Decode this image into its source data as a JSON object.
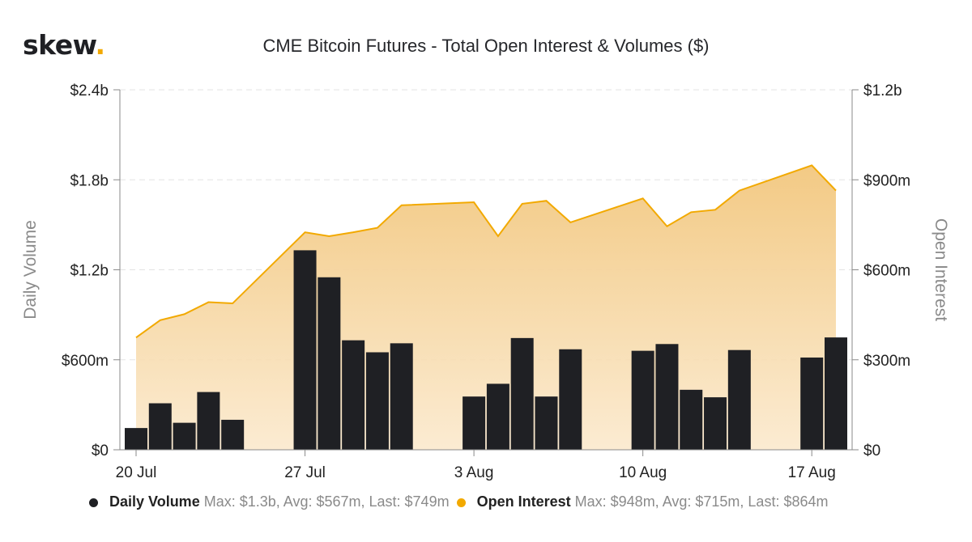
{
  "brand": {
    "name": "skew",
    "dot": "."
  },
  "chart_data": {
    "type": "bar+area",
    "title": "CME Bitcoin Futures - Total Open Interest & Volumes ($)",
    "x_ticks": [
      "20 Jul",
      "27 Jul",
      "3 Aug",
      "10 Aug",
      "17 Aug"
    ],
    "x": [
      "2020-07-20",
      "2020-07-21",
      "2020-07-22",
      "2020-07-23",
      "2020-07-24",
      "2020-07-27",
      "2020-07-28",
      "2020-07-29",
      "2020-07-30",
      "2020-07-31",
      "2020-08-03",
      "2020-08-04",
      "2020-08-05",
      "2020-08-06",
      "2020-08-07",
      "2020-08-10",
      "2020-08-11",
      "2020-08-12",
      "2020-08-13",
      "2020-08-14",
      "2020-08-17",
      "2020-08-18"
    ],
    "left_axis": {
      "label": "Daily Volume",
      "range": [
        0,
        2400000000
      ],
      "ticks": [
        "$0",
        "$600m",
        "$1.2b",
        "$1.8b",
        "$2.4b"
      ]
    },
    "right_axis": {
      "label": "Open Interest",
      "range": [
        0,
        1200000000
      ],
      "ticks": [
        "$0",
        "$300m",
        "$600m",
        "$900m",
        "$1.2b"
      ]
    },
    "grid": true,
    "series": [
      {
        "name": "Daily Volume",
        "kind": "bar",
        "axis": "left",
        "color": "#1f2024",
        "values": [
          145000000,
          310000000,
          180000000,
          385000000,
          200000000,
          1330000000,
          1150000000,
          730000000,
          650000000,
          710000000,
          355000000,
          440000000,
          745000000,
          355000000,
          670000000,
          660000000,
          705000000,
          400000000,
          350000000,
          665000000,
          615000000,
          749000000
        ],
        "stats": "Max: $1.3b, Avg: $567m, Last: $749m"
      },
      {
        "name": "Open Interest",
        "kind": "area",
        "axis": "right",
        "color": "#f2a900",
        "values": [
          374000000,
          432000000,
          452000000,
          492000000,
          488000000,
          725000000,
          712000000,
          725000000,
          740000000,
          815000000,
          825000000,
          712000000,
          820000000,
          830000000,
          758000000,
          838000000,
          745000000,
          792000000,
          800000000,
          864000000,
          948000000,
          864000000
        ],
        "stats": "Max: $948m, Avg: $715m, Last: $864m"
      }
    ]
  }
}
